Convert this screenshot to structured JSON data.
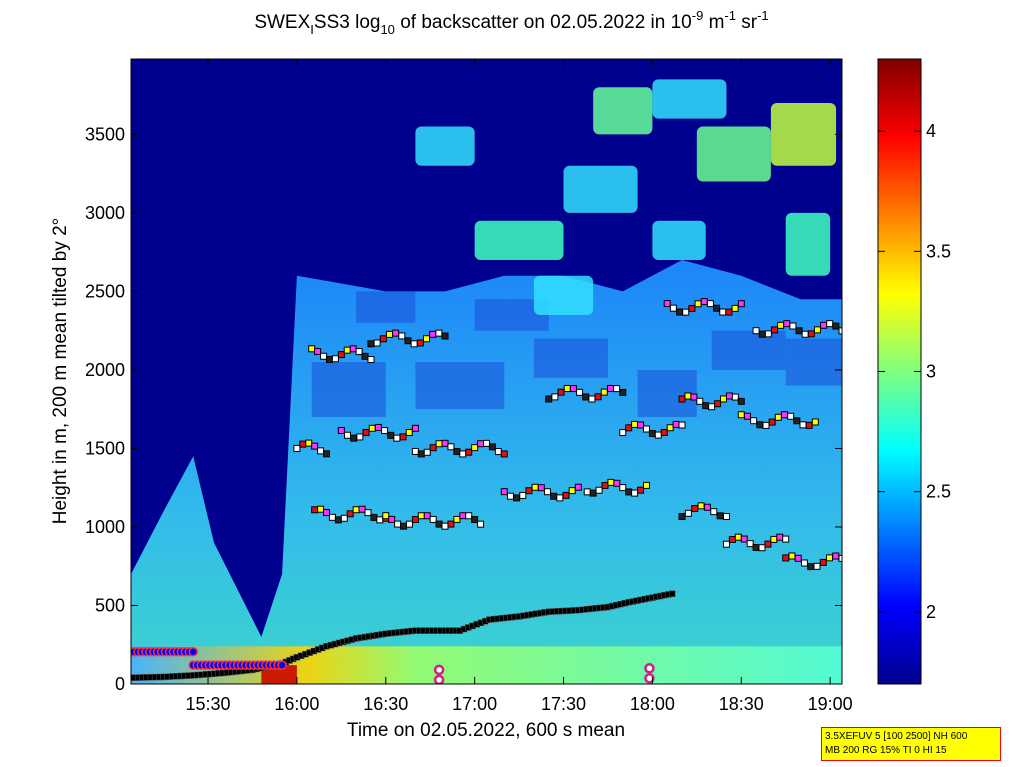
{
  "title": {
    "prefix": "SWEX",
    "sub_i": "I",
    "name": "SS3 log",
    "sub_10": "10",
    "middle": " of backscatter on 02.05.2022 in 10",
    "exp1": "-9",
    "unit1": " m",
    "exp2": "-1",
    "unit2": " sr",
    "exp3": "-1"
  },
  "info_box": {
    "line1": "3.5XEFUV 5 [100 2500] NH 600",
    "line2": "MB 200 RG 15% TI 0 HI 15",
    "border_color": "#ff0000",
    "fill_color": "#ffff00"
  },
  "chart_data": {
    "type": "heatmap",
    "xlabel": "Time on 02.05.2022, 600 s mean",
    "ylabel": "Height in m, 200 m mean tilted by 2°",
    "x_ticks": [
      {
        "t": 930,
        "label": "15:30"
      },
      {
        "t": 960,
        "label": "16:00"
      },
      {
        "t": 990,
        "label": "16:30"
      },
      {
        "t": 1020,
        "label": "17:00"
      },
      {
        "t": 1050,
        "label": "17:30"
      },
      {
        "t": 1080,
        "label": "18:00"
      },
      {
        "t": 1110,
        "label": "18:30"
      },
      {
        "t": 1140,
        "label": "19:00"
      }
    ],
    "xlim_minutes": [
      904,
      1144
    ],
    "y_ticks": [
      0,
      500,
      1000,
      1500,
      2000,
      2500,
      3000,
      3500
    ],
    "ylim": [
      0,
      3980
    ],
    "colorbar": {
      "colormap": "jet",
      "range": [
        1.7,
        4.3
      ],
      "ticks": [
        2,
        2.5,
        3,
        3.5,
        4
      ]
    },
    "mixing_layer_height": {
      "color": "#000000",
      "points": [
        [
          905,
          40
        ],
        [
          915,
          45
        ],
        [
          925,
          55
        ],
        [
          935,
          70
        ],
        [
          945,
          90
        ],
        [
          955,
          130
        ],
        [
          960,
          170
        ],
        [
          970,
          240
        ],
        [
          980,
          290
        ],
        [
          990,
          320
        ],
        [
          1000,
          340
        ],
        [
          1010,
          340
        ],
        [
          1015,
          340
        ],
        [
          1025,
          410
        ],
        [
          1035,
          430
        ],
        [
          1045,
          460
        ],
        [
          1055,
          470
        ],
        [
          1065,
          490
        ],
        [
          1072,
          520
        ],
        [
          1080,
          550
        ],
        [
          1088,
          580
        ]
      ]
    },
    "cloud_layers": [
      {
        "t0": 960,
        "t1": 970,
        "h": 1500
      },
      {
        "t0": 966,
        "t1": 990,
        "h": 1080
      },
      {
        "t0": 990,
        "t1": 1022,
        "h": 1040
      },
      {
        "t0": 1030,
        "t1": 1055,
        "h": 1220
      },
      {
        "t0": 1058,
        "t1": 1078,
        "h": 1250
      },
      {
        "t0": 1090,
        "t1": 1105,
        "h": 1100
      },
      {
        "t0": 1105,
        "t1": 1125,
        "h": 900
      },
      {
        "t0": 1125,
        "t1": 1144,
        "h": 780
      },
      {
        "t0": 965,
        "t1": 985,
        "h": 2100
      },
      {
        "t0": 975,
        "t1": 1000,
        "h": 1600
      },
      {
        "t0": 1000,
        "t1": 1030,
        "h": 1500
      },
      {
        "t0": 1045,
        "t1": 1070,
        "h": 1850
      },
      {
        "t0": 1070,
        "t1": 1090,
        "h": 1620
      },
      {
        "t0": 1090,
        "t1": 1110,
        "h": 1800
      },
      {
        "t0": 1110,
        "t1": 1135,
        "h": 1680
      },
      {
        "t0": 1085,
        "t1": 1110,
        "h": 2400
      },
      {
        "t0": 1115,
        "t1": 1144,
        "h": 2260
      },
      {
        "t0": 985,
        "t1": 1010,
        "h": 2200
      }
    ],
    "surface_layers": [
      {
        "t0": 905,
        "t1": 925,
        "h": 205,
        "color": "#0000ff"
      },
      {
        "t0": 925,
        "t1": 955,
        "h": 120,
        "color": "#0000ff"
      }
    ]
  }
}
